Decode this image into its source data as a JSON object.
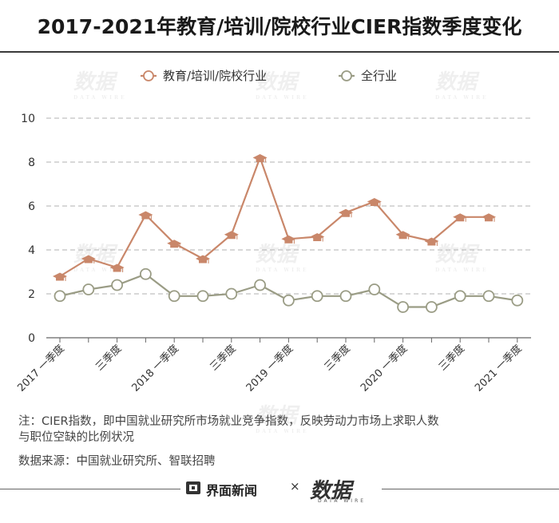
{
  "title": "2017-2021年教育/培训/院校行业CIER指数季度变化",
  "note_line1": "注：CIER指数，即中国就业研究所市场就业竞争指数，反映劳动力市场上求职人数",
  "note_line2": "与职位空缺的比例状况",
  "source": "数据来源：中国就业研究所、智联招聘",
  "footer": {
    "brand": "界面新闻",
    "times": "×",
    "logo": "数据",
    "logo_sub": "DATA WIRE",
    "brand_icon": "jiemian-logo-icon"
  },
  "watermark": {
    "text": "数据",
    "sub": "DATA WIRE"
  },
  "colors": {
    "edu": "#c9876a",
    "all": "#9a9c85",
    "grid": "#b0b0b0",
    "axis": "#666666"
  },
  "chart_data": {
    "type": "line",
    "categories": [
      "2017 一季度",
      "",
      "三季度",
      "",
      "2018 一季度",
      "",
      "三季度",
      "",
      "2019 一季度",
      "",
      "三季度",
      "",
      "2020 一季度",
      "",
      "三季度",
      "",
      "2021 一季度"
    ],
    "series": [
      {
        "name": "教育/培训/院校行业",
        "marker": "mortarboard",
        "values": [
          2.8,
          3.6,
          3.2,
          5.6,
          4.3,
          3.6,
          4.7,
          8.2,
          4.5,
          4.6,
          5.7,
          6.2,
          4.7,
          4.4,
          5.5,
          5.5,
          null
        ]
      },
      {
        "name": "全行业",
        "marker": "circle",
        "values": [
          1.9,
          2.2,
          2.4,
          2.9,
          1.9,
          1.9,
          2.0,
          2.4,
          1.7,
          1.9,
          1.9,
          2.2,
          1.4,
          1.4,
          1.9,
          1.9,
          1.7
        ]
      }
    ],
    "ylim": [
      0,
      10
    ],
    "yticks": [
      0,
      2,
      4,
      6,
      8,
      10
    ],
    "legend_position": "top",
    "grid": true
  }
}
